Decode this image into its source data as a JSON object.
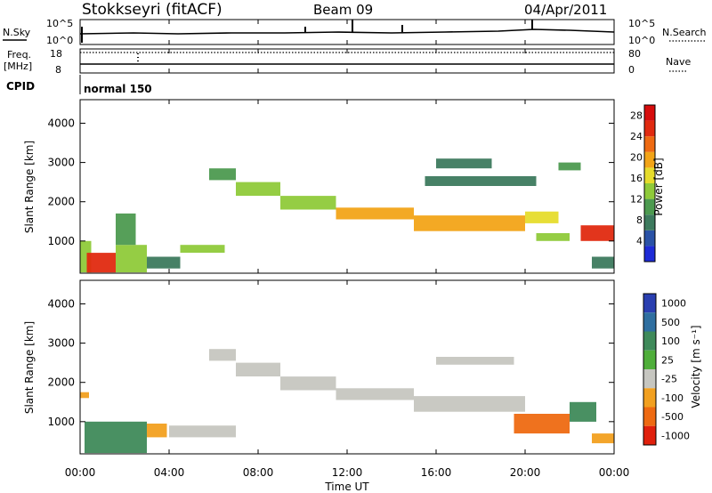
{
  "header": {
    "station": "Stokkseyri (fitACF)",
    "beam": "Beam 09",
    "date": "04/Apr/2011"
  },
  "panels": {
    "nsky": {
      "label": "N.Sky",
      "ytick_top": "10^5",
      "ytick_bottom": "10^0",
      "rtick_top": "10^5",
      "rtick_bottom": "10^0",
      "right_label": "N.Search"
    },
    "freq": {
      "label_line1": "Freq.",
      "label_line2": "[MHz]",
      "ytick_top": "18",
      "ytick_bottom": "8",
      "rtick_top": "80",
      "rtick_bottom": "0",
      "right_label": "Nave"
    },
    "cpid": {
      "label": "CPID",
      "value": "normal 150"
    }
  },
  "colorbars": {
    "power": {
      "label": "Power [dB]",
      "ticks": [
        "4",
        "8",
        "12",
        "16",
        "20",
        "24",
        "28"
      ],
      "colors": [
        "#1e2bd6",
        "#2a52a6",
        "#3d7a5e",
        "#4d9a50",
        "#8fca3a",
        "#e6dc2c",
        "#f2a418",
        "#ee6a12",
        "#e02a10",
        "#d60c0c"
      ]
    },
    "velocity": {
      "label": "Velocity [m s⁻¹]",
      "ticks": [
        "1000",
        "500",
        "100",
        "25",
        "-25",
        "-100",
        "-500",
        "-1000"
      ],
      "colors": [
        "#2a3fb0",
        "#2f6fa0",
        "#3f8a5a",
        "#4fae3a",
        "#c6c6c0",
        "#f2a020",
        "#ee6a12",
        "#e0200c"
      ]
    }
  },
  "axes": {
    "ylabel": "Slant Range [km]",
    "yticks": [
      "1000",
      "2000",
      "3000",
      "4000"
    ],
    "xticks": [
      "00:00",
      "04:00",
      "08:00",
      "12:00",
      "16:00",
      "20:00",
      "00:00"
    ],
    "xlabel": "Time UT"
  },
  "chart_data": [
    {
      "type": "heatmap",
      "title": "Power [dB]",
      "xlabel": "Time UT",
      "ylabel": "Slant Range [km]",
      "xlim": [
        0,
        24
      ],
      "ylim": [
        180,
        4600
      ],
      "scale_range": [
        0,
        30
      ],
      "regions": [
        {
          "t0": 0.0,
          "t1": 0.5,
          "r0": 200,
          "r1": 1000,
          "v": 14
        },
        {
          "t0": 0.3,
          "t1": 1.6,
          "r0": 200,
          "r1": 700,
          "v": 24
        },
        {
          "t0": 1.6,
          "t1": 3.0,
          "r0": 200,
          "r1": 900,
          "v": 12
        },
        {
          "t0": 1.6,
          "t1": 2.5,
          "r0": 900,
          "r1": 1700,
          "v": 10
        },
        {
          "t0": 3.0,
          "t1": 4.5,
          "r0": 300,
          "r1": 600,
          "v": 8
        },
        {
          "t0": 4.5,
          "t1": 6.5,
          "r0": 700,
          "r1": 900,
          "v": 14
        },
        {
          "t0": 5.8,
          "t1": 7.0,
          "r0": 2550,
          "r1": 2850,
          "v": 10
        },
        {
          "t0": 7.0,
          "t1": 9.0,
          "r0": 2150,
          "r1": 2500,
          "v": 12
        },
        {
          "t0": 9.0,
          "t1": 11.5,
          "r0": 1800,
          "r1": 2150,
          "v": 14
        },
        {
          "t0": 11.5,
          "t1": 15.0,
          "r0": 1550,
          "r1": 1850,
          "v": 18
        },
        {
          "t0": 15.0,
          "t1": 20.0,
          "r0": 1250,
          "r1": 1650,
          "v": 19
        },
        {
          "t0": 20.0,
          "t1": 21.5,
          "r0": 1450,
          "r1": 1750,
          "v": 16
        },
        {
          "t0": 15.5,
          "t1": 20.5,
          "r0": 2400,
          "r1": 2650,
          "v": 8
        },
        {
          "t0": 16.0,
          "t1": 18.5,
          "r0": 2850,
          "r1": 3100,
          "v": 6
        },
        {
          "t0": 21.5,
          "t1": 22.5,
          "r0": 2800,
          "r1": 3000,
          "v": 10
        },
        {
          "t0": 20.5,
          "t1": 22.0,
          "r0": 1000,
          "r1": 1200,
          "v": 14
        },
        {
          "t0": 22.5,
          "t1": 24.0,
          "r0": 1000,
          "r1": 1400,
          "v": 24
        },
        {
          "t0": 23.0,
          "t1": 24.0,
          "r0": 300,
          "r1": 600,
          "v": 8
        }
      ]
    },
    {
      "type": "heatmap",
      "title": "Velocity [m s⁻¹]",
      "xlabel": "Time UT",
      "ylabel": "Slant Range [km]",
      "xlim": [
        0,
        24
      ],
      "ylim": [
        180,
        4600
      ],
      "regions": [
        {
          "t0": 0.0,
          "t1": 0.4,
          "r0": 1600,
          "r1": 1750,
          "v": -200
        },
        {
          "t0": 0.2,
          "t1": 3.0,
          "r0": 200,
          "r1": 1000,
          "v": 100
        },
        {
          "t0": 3.0,
          "t1": 3.9,
          "r0": 600,
          "r1": 950,
          "v": -300
        },
        {
          "t0": 4.0,
          "t1": 7.0,
          "r0": 600,
          "r1": 900,
          "v": 0
        },
        {
          "t0": 5.8,
          "t1": 7.0,
          "r0": 2550,
          "r1": 2850,
          "v": 0
        },
        {
          "t0": 7.0,
          "t1": 9.0,
          "r0": 2150,
          "r1": 2500,
          "v": 0
        },
        {
          "t0": 9.0,
          "t1": 11.5,
          "r0": 1800,
          "r1": 2150,
          "v": 0
        },
        {
          "t0": 11.5,
          "t1": 15.0,
          "r0": 1550,
          "r1": 1850,
          "v": 0
        },
        {
          "t0": 15.0,
          "t1": 20.0,
          "r0": 1250,
          "r1": 1650,
          "v": 0
        },
        {
          "t0": 16.0,
          "t1": 19.5,
          "r0": 2450,
          "r1": 2650,
          "v": 0
        },
        {
          "t0": 19.5,
          "t1": 22.0,
          "r0": 700,
          "r1": 1200,
          "v": -400
        },
        {
          "t0": 22.0,
          "t1": 23.2,
          "r0": 1000,
          "r1": 1500,
          "v": 300
        },
        {
          "t0": 23.0,
          "t1": 24.0,
          "r0": 450,
          "r1": 700,
          "v": -200
        }
      ]
    }
  ]
}
